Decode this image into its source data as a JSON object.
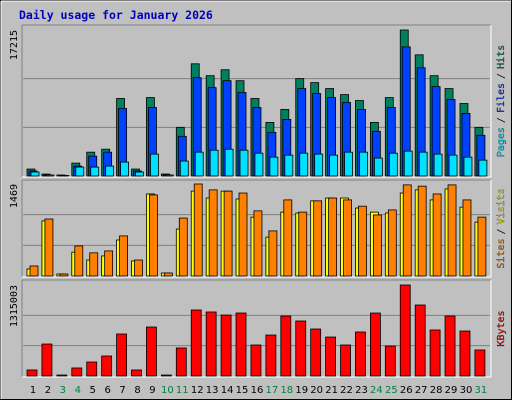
{
  "chart_data": [
    {
      "type": "bar",
      "title": "Daily usage for January 2026",
      "ylim": [
        0,
        17215
      ],
      "yticks": [
        17215
      ],
      "grid_lines": 3,
      "legend_separator": "/",
      "series": [
        {
          "name": "Hits",
          "color": "#00805c",
          "values": [
            820,
            230,
            120,
            1520,
            2810,
            3160,
            9140,
            820,
            9250,
            230,
            5740,
            13230,
            11830,
            12530,
            11240,
            9140,
            6320,
            7850,
            11480,
            11010,
            10310,
            9600,
            8900,
            6320,
            9250,
            17215,
            14290,
            11830,
            10310,
            8550,
            5740
          ]
        },
        {
          "name": "Files",
          "color": "#0040ff",
          "values": [
            590,
            120,
            60,
            1170,
            2340,
            2810,
            7960,
            590,
            8080,
            120,
            4680,
            11590,
            10420,
            11240,
            9840,
            8080,
            5150,
            6670,
            10310,
            9720,
            9250,
            8670,
            7850,
            5270,
            8080,
            15220,
            12760,
            10540,
            9020,
            7380,
            4800
          ]
        },
        {
          "name": "Pages",
          "color": "#00e0ff",
          "values": [
            470,
            120,
            60,
            1050,
            1050,
            1170,
            1640,
            470,
            2580,
            120,
            1760,
            2810,
            3040,
            3160,
            3040,
            2690,
            2220,
            2460,
            2690,
            2580,
            2460,
            2810,
            2810,
            2110,
            2690,
            2930,
            2810,
            2580,
            2460,
            2220,
            1870
          ]
        }
      ]
    },
    {
      "type": "bar",
      "ylim": [
        0,
        1469
      ],
      "yticks": [
        1469
      ],
      "grid_lines": 3,
      "legend_separator": "/",
      "series": [
        {
          "name": "Visits",
          "color": "#ffff00",
          "values": [
            112,
            880,
            32,
            380,
            255,
            320,
            575,
            240,
            1310,
            48,
            750,
            1355,
            1245,
            1355,
            1230,
            940,
            620,
            1020,
            1005,
            1200,
            1245,
            1245,
            1085,
            1020,
            1005,
            1325,
            1375,
            1215,
            1390,
            1100,
            860
          ]
        },
        {
          "name": "Sites",
          "color": "#ff8000",
          "values": [
            160,
            910,
            32,
            480,
            370,
            400,
            640,
            255,
            1295,
            48,
            925,
            1469,
            1375,
            1355,
            1325,
            1040,
            720,
            1215,
            1020,
            1200,
            1245,
            1215,
            1115,
            975,
            1055,
            1455,
            1435,
            1310,
            1455,
            1215,
            940
          ]
        }
      ]
    },
    {
      "type": "bar",
      "ylim": [
        0,
        1315003
      ],
      "yticks": [
        1315003
      ],
      "grid_lines": 3,
      "categories": [
        "1",
        "2",
        "3",
        "4",
        "5",
        "6",
        "7",
        "8",
        "9",
        "10",
        "11",
        "12",
        "13",
        "14",
        "15",
        "16",
        "17",
        "18",
        "19",
        "20",
        "21",
        "22",
        "23",
        "24",
        "25",
        "26",
        "27",
        "28",
        "29",
        "30",
        "31"
      ],
      "label_colors": [
        "#000000",
        "#000000",
        "#008040",
        "#008040",
        "#000000",
        "#000000",
        "#000000",
        "#000000",
        "#000000",
        "#008040",
        "#008040",
        "#000000",
        "#000000",
        "#000000",
        "#000000",
        "#000000",
        "#008040",
        "#008040",
        "#000000",
        "#000000",
        "#000000",
        "#000000",
        "#000000",
        "#008040",
        "#008040",
        "#000000",
        "#000000",
        "#000000",
        "#000000",
        "#000000",
        "#008040"
      ],
      "series": [
        {
          "name": "KBytes",
          "color": "#ff0000",
          "values": [
            87000,
            462000,
            14000,
            116000,
            202000,
            289000,
            607000,
            87000,
            708000,
            14000,
            405000,
            954000,
            925000,
            881000,
            910000,
            448000,
            592000,
            867000,
            795000,
            679000,
            563000,
            448000,
            636000,
            910000,
            433000,
            1315003,
            1026000,
            665000,
            867000,
            650000,
            376000
          ]
        }
      ]
    }
  ]
}
